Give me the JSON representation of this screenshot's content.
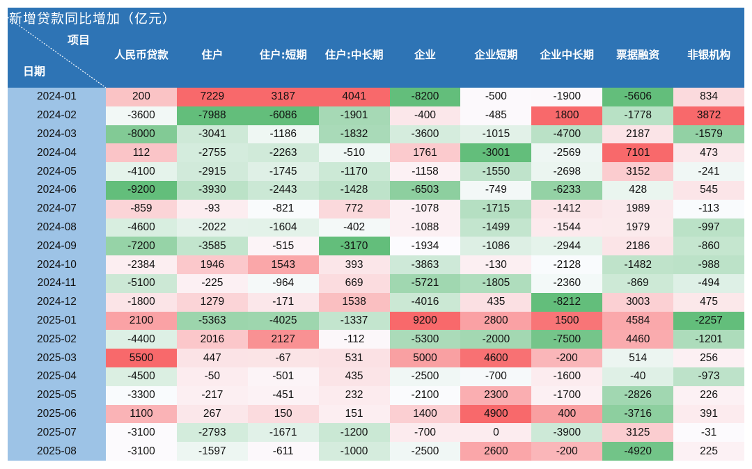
{
  "table": {
    "title": "新增贷款同比增加（亿元）",
    "corner_top_label": "项目",
    "corner_bottom_label": "日期",
    "colors": {
      "header_bg": "#2e74b5",
      "date_col_bg": "#9dc3e6",
      "scale_min": "#63be7b",
      "scale_mid": "#fcfcff",
      "scale_max": "#f8696b"
    },
    "columns": [
      "人民币贷款",
      "住户",
      "住户:短期",
      "住户:中长期",
      "企业",
      "企业短期",
      "企业中长期",
      "票据融资",
      "非银机构"
    ],
    "rows": [
      {
        "date": "2024-01",
        "values": [
          200,
          7229,
          3187,
          4041,
          -8200,
          -500,
          -1900,
          -5606,
          834
        ]
      },
      {
        "date": "2024-02",
        "values": [
          -3600,
          -7988,
          -6086,
          -1901,
          -400,
          -485,
          1800,
          -1778,
          3872
        ]
      },
      {
        "date": "2024-03",
        "values": [
          -8000,
          -3041,
          -1186,
          -1832,
          -3600,
          -1015,
          -4700,
          2187,
          -1579
        ]
      },
      {
        "date": "2024-04",
        "values": [
          112,
          -2755,
          -2263,
          -510,
          1761,
          -3001,
          -2569,
          7101,
          473
        ]
      },
      {
        "date": "2024-05",
        "values": [
          -4100,
          -2915,
          -1745,
          -1170,
          -1158,
          -1550,
          -2698,
          3152,
          -241
        ]
      },
      {
        "date": "2024-06",
        "values": [
          -9200,
          -3930,
          -2443,
          -1428,
          -6503,
          -749,
          -6233,
          428,
          545
        ]
      },
      {
        "date": "2024-07",
        "values": [
          -859,
          -93,
          -821,
          772,
          -1078,
          -1715,
          -1412,
          1989,
          -113
        ]
      },
      {
        "date": "2024-08",
        "values": [
          -4600,
          -2022,
          -1604,
          -402,
          -1088,
          -1499,
          -1544,
          1979,
          -997
        ]
      },
      {
        "date": "2024-09",
        "values": [
          -7200,
          -3585,
          -515,
          -3170,
          -1934,
          -1086,
          -2944,
          2186,
          -860
        ]
      },
      {
        "date": "2024-10",
        "values": [
          -2384,
          1946,
          1543,
          393,
          -3863,
          -130,
          -2128,
          -1482,
          -988
        ]
      },
      {
        "date": "2024-11",
        "values": [
          -5100,
          -225,
          -964,
          669,
          -5721,
          -1805,
          -2360,
          -869,
          -494
        ]
      },
      {
        "date": "2024-12",
        "values": [
          -1800,
          1279,
          -171,
          1538,
          -4016,
          435,
          -8212,
          3003,
          475
        ]
      },
      {
        "date": "2025-01",
        "values": [
          2100,
          -5363,
          -4025,
          -1337,
          9200,
          2800,
          1500,
          4584,
          -2257
        ]
      },
      {
        "date": "2025-02",
        "values": [
          -4400,
          2016,
          2127,
          -112,
          -5300,
          -2000,
          -7500,
          4460,
          -1201
        ]
      },
      {
        "date": "2025-03",
        "values": [
          5500,
          447,
          -67,
          531,
          5000,
          4600,
          -200,
          514,
          256
        ]
      },
      {
        "date": "2025-04",
        "values": [
          -4500,
          -50,
          -501,
          435,
          -2500,
          -700,
          -1600,
          -40,
          -973
        ]
      },
      {
        "date": "2025-05",
        "values": [
          -3300,
          -217,
          -451,
          232,
          -2100,
          2300,
          -1700,
          -2826,
          226
        ]
      },
      {
        "date": "2025-06",
        "values": [
          1100,
          267,
          150,
          151,
          1400,
          4900,
          400,
          -3716,
          391
        ]
      },
      {
        "date": "2025-07",
        "values": [
          -3100,
          -2793,
          -1671,
          -1200,
          -700,
          0,
          -3900,
          3125,
          -31
        ]
      },
      {
        "date": "2025-08",
        "values": [
          -3100,
          -1597,
          -611,
          -1000,
          -2500,
          2600,
          -200,
          -4920,
          225
        ]
      }
    ]
  }
}
